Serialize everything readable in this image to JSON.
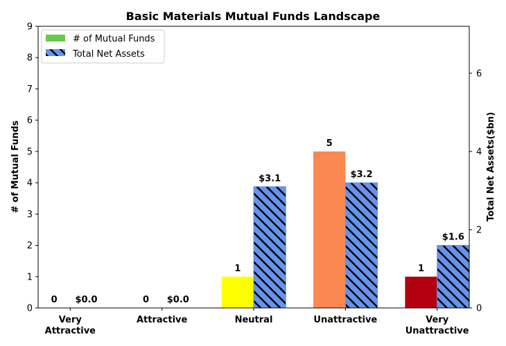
{
  "chart_data": {
    "type": "bar",
    "title": "Basic Materials Mutual Funds Landscape",
    "xlabel": "",
    "ylabel_left": "# of Mutual Funds",
    "ylabel_right": "Total Net Assets($bn)",
    "categories": [
      [
        "Very",
        "Attractive"
      ],
      [
        "Attractive"
      ],
      [
        "Neutral"
      ],
      [
        "Unattractive"
      ],
      [
        "Very",
        "Unattractive"
      ]
    ],
    "ylim_left": [
      0,
      9
    ],
    "yticks_left": [
      "0",
      "1",
      "2",
      "3",
      "4",
      "5",
      "6",
      "7",
      "8",
      "9"
    ],
    "ylim_right": [
      0,
      7.2
    ],
    "yticks_right": [
      "0",
      "2",
      "4",
      "6"
    ],
    "series": [
      {
        "name": "# of Mutual Funds",
        "axis": "left",
        "values": [
          0,
          0,
          1,
          5,
          1
        ],
        "labels": [
          "0",
          "0",
          "1",
          "5",
          "1"
        ],
        "colors": [
          "#2ca02c",
          "#7fbf3f",
          "#ffff00",
          "#f98851",
          "#b30011"
        ],
        "legend_color": "#6ac94a"
      },
      {
        "name": "Total Net Assets",
        "axis": "right",
        "values": [
          0.0,
          0.0,
          3.1,
          3.2,
          1.6
        ],
        "labels": [
          "$0.0",
          "$0.0",
          "$3.1",
          "$3.2",
          "$1.6"
        ],
        "color": "#6495ed",
        "hatch": "diagonal"
      }
    ],
    "legend_position": "upper-left",
    "grid": false
  }
}
